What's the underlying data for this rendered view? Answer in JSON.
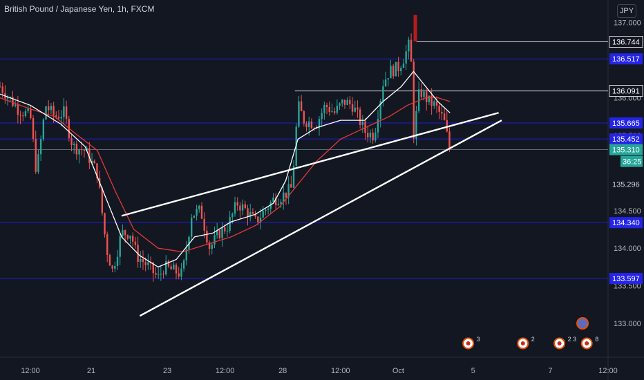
{
  "header": {
    "title": "British Pound / Japanese Yen, 1h, FXCM",
    "currency_button": "JPY"
  },
  "countdown": "36:25",
  "colors": {
    "background": "#131722",
    "up": "#26a69a",
    "down": "#ef5350",
    "sma_white": "#ffffff",
    "sma_red": "#e53935",
    "level_line": "#1e1ed0",
    "level_label": "#2424e8",
    "current_label": "#26a69a",
    "trend_line": "#ffffff"
  },
  "chart_data": {
    "type": "line",
    "symbol": "GBPJPY",
    "interval": "1h",
    "ylim": [
      132.55,
      137.3
    ],
    "y_ticks": [
      137.0,
      136.5,
      136.0,
      135.5,
      134.5,
      134.0,
      133.5,
      133.0
    ],
    "y_tick_labels": [
      "137.000",
      "136.500",
      "136.000",
      "135.500",
      "134.500",
      "134.000",
      "133.500",
      "133.000"
    ],
    "x_ticks": [
      {
        "label": "12:00",
        "t": 0.05
      },
      {
        "label": "21",
        "t": 0.15
      },
      {
        "label": "23",
        "t": 0.275
      },
      {
        "label": "12:00",
        "t": 0.37
      },
      {
        "label": "28",
        "t": 0.465
      },
      {
        "label": "12:00",
        "t": 0.56
      },
      {
        "label": "Oct",
        "t": 0.655
      },
      {
        "label": "5",
        "t": 0.778
      },
      {
        "label": "7",
        "t": 0.905
      },
      {
        "label": "12:00",
        "t": 1.0
      }
    ],
    "price_path": [
      [
        0.0,
        136.15
      ],
      [
        0.03,
        135.85
      ],
      [
        0.05,
        135.75
      ],
      [
        0.06,
        135.0
      ],
      [
        0.075,
        135.9
      ],
      [
        0.09,
        135.75
      ],
      [
        0.105,
        135.8
      ],
      [
        0.12,
        135.35
      ],
      [
        0.14,
        135.3
      ],
      [
        0.16,
        135.0
      ],
      [
        0.175,
        134.0
      ],
      [
        0.185,
        133.7
      ],
      [
        0.2,
        134.2
      ],
      [
        0.215,
        134.2
      ],
      [
        0.225,
        133.9
      ],
      [
        0.245,
        133.75
      ],
      [
        0.26,
        133.6
      ],
      [
        0.27,
        133.75
      ],
      [
        0.285,
        133.7
      ],
      [
        0.3,
        133.65
      ],
      [
        0.315,
        134.45
      ],
      [
        0.33,
        134.5
      ],
      [
        0.345,
        134.0
      ],
      [
        0.36,
        134.2
      ],
      [
        0.375,
        134.3
      ],
      [
        0.39,
        134.6
      ],
      [
        0.405,
        134.5
      ],
      [
        0.42,
        134.35
      ],
      [
        0.435,
        134.5
      ],
      [
        0.45,
        134.65
      ],
      [
        0.465,
        134.7
      ],
      [
        0.48,
        134.8
      ],
      [
        0.49,
        135.9
      ],
      [
        0.5,
        135.7
      ],
      [
        0.52,
        135.65
      ],
      [
        0.535,
        135.9
      ],
      [
        0.55,
        135.8
      ],
      [
        0.565,
        135.95
      ],
      [
        0.58,
        135.9
      ],
      [
        0.6,
        135.55
      ],
      [
        0.615,
        135.5
      ],
      [
        0.63,
        136.2
      ],
      [
        0.64,
        136.35
      ],
      [
        0.655,
        136.4
      ],
      [
        0.665,
        136.55
      ],
      [
        0.675,
        136.75
      ],
      [
        0.68,
        135.5
      ],
      [
        0.69,
        136.1
      ],
      [
        0.705,
        135.95
      ],
      [
        0.715,
        135.9
      ],
      [
        0.73,
        135.7
      ],
      [
        0.74,
        135.3
      ]
    ],
    "series": [
      {
        "name": "",
        "values": [
          [
            0.0,
            136.05
          ],
          [
            0.05,
            135.9
          ],
          [
            0.1,
            135.65
          ],
          [
            0.14,
            135.35
          ],
          [
            0.17,
            134.75
          ],
          [
            0.2,
            134.15
          ],
          [
            0.23,
            133.9
          ],
          [
            0.26,
            133.75
          ],
          [
            0.29,
            133.85
          ],
          [
            0.32,
            134.15
          ],
          [
            0.35,
            134.2
          ],
          [
            0.38,
            134.35
          ],
          [
            0.42,
            134.45
          ],
          [
            0.45,
            134.6
          ],
          [
            0.47,
            134.9
          ],
          [
            0.49,
            135.45
          ],
          [
            0.52,
            135.6
          ],
          [
            0.56,
            135.7
          ],
          [
            0.6,
            135.7
          ],
          [
            0.63,
            135.95
          ],
          [
            0.66,
            136.15
          ],
          [
            0.68,
            136.35
          ],
          [
            0.7,
            136.15
          ],
          [
            0.72,
            135.95
          ],
          [
            0.74,
            135.8
          ]
        ]
      },
      {
        "name": "",
        "values": [
          [
            0.0,
            136.0
          ],
          [
            0.05,
            135.85
          ],
          [
            0.09,
            135.75
          ],
          [
            0.12,
            135.55
          ],
          [
            0.16,
            135.3
          ],
          [
            0.19,
            134.75
          ],
          [
            0.22,
            134.25
          ],
          [
            0.26,
            134.0
          ],
          [
            0.3,
            133.95
          ],
          [
            0.34,
            134.05
          ],
          [
            0.38,
            134.15
          ],
          [
            0.42,
            134.3
          ],
          [
            0.46,
            134.55
          ],
          [
            0.49,
            134.85
          ],
          [
            0.52,
            135.15
          ],
          [
            0.56,
            135.45
          ],
          [
            0.6,
            135.6
          ],
          [
            0.64,
            135.75
          ],
          [
            0.67,
            135.9
          ],
          [
            0.7,
            136.0
          ],
          [
            0.72,
            136.0
          ],
          [
            0.74,
            135.95
          ]
        ]
      }
    ],
    "horizontal_levels": [
      {
        "price": 136.517,
        "label": "136.517",
        "style": "blue"
      },
      {
        "price": 135.665,
        "label": "135.665",
        "style": "blue"
      },
      {
        "price": 135.452,
        "label": "135.452",
        "style": "blue"
      },
      {
        "price": 134.34,
        "label": "134.340",
        "style": "blue"
      },
      {
        "price": 133.597,
        "label": "133.597",
        "style": "blue"
      },
      {
        "price": 136.744,
        "label": "136.744",
        "style": "white",
        "from_t": 0.685
      },
      {
        "price": 136.091,
        "label": "136.091",
        "style": "white",
        "from_t": 0.485
      },
      {
        "price": 135.31,
        "label": "135.310",
        "style": "current"
      }
    ],
    "extra_price_label": "135.296",
    "trend_lines": [
      {
        "from": [
          0.2,
          134.43
        ],
        "to": [
          0.82,
          135.8
        ]
      },
      {
        "from": [
          0.23,
          133.1
        ],
        "to": [
          0.825,
          135.7
        ]
      }
    ],
    "event_markers": [
      {
        "t": 0.77,
        "badge": "3"
      },
      {
        "t": 0.86,
        "badge": "2"
      },
      {
        "t": 0.92,
        "badge": "2 3"
      },
      {
        "t": 0.965,
        "badge": "8"
      }
    ]
  }
}
